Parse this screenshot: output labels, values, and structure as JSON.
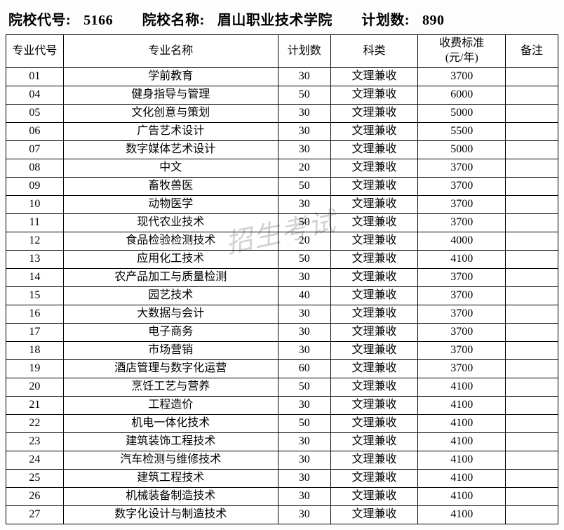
{
  "header": {
    "code_label": "院校代号:",
    "code_value": "5166",
    "name_label": "院校名称:",
    "name_value": "眉山职业技术学院",
    "plan_label": "计划数:",
    "plan_value": "890"
  },
  "columns": {
    "code": "专业代号",
    "name": "专业名称",
    "plan": "计划数",
    "category": "科类",
    "fee": "收费标准\n(元/年)",
    "note": "备注"
  },
  "rows": [
    {
      "code": "01",
      "name": "学前教育",
      "plan": "30",
      "category": "文理兼收",
      "fee": "3700",
      "note": ""
    },
    {
      "code": "04",
      "name": "健身指导与管理",
      "plan": "50",
      "category": "文理兼收",
      "fee": "6000",
      "note": ""
    },
    {
      "code": "05",
      "name": "文化创意与策划",
      "plan": "30",
      "category": "文理兼收",
      "fee": "5000",
      "note": ""
    },
    {
      "code": "06",
      "name": "广告艺术设计",
      "plan": "30",
      "category": "文理兼收",
      "fee": "5500",
      "note": ""
    },
    {
      "code": "07",
      "name": "数字媒体艺术设计",
      "plan": "30",
      "category": "文理兼收",
      "fee": "5000",
      "note": ""
    },
    {
      "code": "08",
      "name": "中文",
      "plan": "20",
      "category": "文理兼收",
      "fee": "3700",
      "note": ""
    },
    {
      "code": "09",
      "name": "畜牧兽医",
      "plan": "50",
      "category": "文理兼收",
      "fee": "3700",
      "note": ""
    },
    {
      "code": "10",
      "name": "动物医学",
      "plan": "30",
      "category": "文理兼收",
      "fee": "3700",
      "note": ""
    },
    {
      "code": "11",
      "name": "现代农业技术",
      "plan": "50",
      "category": "文理兼收",
      "fee": "3700",
      "note": ""
    },
    {
      "code": "12",
      "name": "食品检验检测技术",
      "plan": "20",
      "category": "文理兼收",
      "fee": "4000",
      "note": ""
    },
    {
      "code": "13",
      "name": "应用化工技术",
      "plan": "50",
      "category": "文理兼收",
      "fee": "4100",
      "note": ""
    },
    {
      "code": "14",
      "name": "农产品加工与质量检测",
      "plan": "30",
      "category": "文理兼收",
      "fee": "3700",
      "note": ""
    },
    {
      "code": "15",
      "name": "园艺技术",
      "plan": "40",
      "category": "文理兼收",
      "fee": "3700",
      "note": ""
    },
    {
      "code": "16",
      "name": "大数据与会计",
      "plan": "30",
      "category": "文理兼收",
      "fee": "3700",
      "note": ""
    },
    {
      "code": "17",
      "name": "电子商务",
      "plan": "30",
      "category": "文理兼收",
      "fee": "3700",
      "note": ""
    },
    {
      "code": "18",
      "name": "市场营销",
      "plan": "30",
      "category": "文理兼收",
      "fee": "3700",
      "note": ""
    },
    {
      "code": "19",
      "name": "酒店管理与数字化运营",
      "plan": "60",
      "category": "文理兼收",
      "fee": "3700",
      "note": ""
    },
    {
      "code": "20",
      "name": "烹饪工艺与营养",
      "plan": "50",
      "category": "文理兼收",
      "fee": "4100",
      "note": ""
    },
    {
      "code": "21",
      "name": "工程造价",
      "plan": "30",
      "category": "文理兼收",
      "fee": "4100",
      "note": ""
    },
    {
      "code": "22",
      "name": "机电一体化技术",
      "plan": "50",
      "category": "文理兼收",
      "fee": "4100",
      "note": ""
    },
    {
      "code": "23",
      "name": "建筑装饰工程技术",
      "plan": "30",
      "category": "文理兼收",
      "fee": "4100",
      "note": ""
    },
    {
      "code": "24",
      "name": "汽车检测与维修技术",
      "plan": "30",
      "category": "文理兼收",
      "fee": "4100",
      "note": ""
    },
    {
      "code": "25",
      "name": "建筑工程技术",
      "plan": "30",
      "category": "文理兼收",
      "fee": "4100",
      "note": ""
    },
    {
      "code": "26",
      "name": "机械装备制造技术",
      "plan": "30",
      "category": "文理兼收",
      "fee": "4100",
      "note": ""
    },
    {
      "code": "27",
      "name": "数字化设计与制造技术",
      "plan": "30",
      "category": "文理兼收",
      "fee": "4100",
      "note": ""
    }
  ],
  "watermark": "招生考试"
}
